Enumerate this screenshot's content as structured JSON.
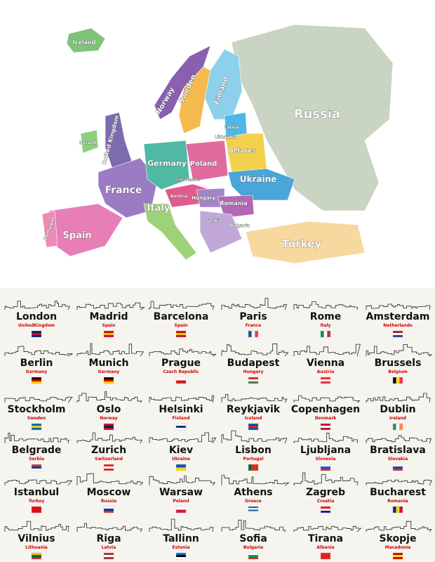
{
  "map": {
    "labels": [
      "Iceland",
      "Russia",
      "Norway",
      "Sweden",
      "Finland",
      "United Kingdom",
      "Ireland",
      "Latvia",
      "Lithuania",
      "Germany",
      "Poland",
      "Belarus",
      "Ukraine",
      "France",
      "Austria",
      "Hungary",
      "Romania",
      "Italy",
      "Spain",
      "Portugal",
      "Turkey",
      "Czech Republic",
      "Serbia",
      "Bulgaria"
    ]
  },
  "cities": [
    {
      "name": "London",
      "country": "UnitedKingdom"
    },
    {
      "name": "Madrid",
      "country": "Spain"
    },
    {
      "name": "Barcelona",
      "country": "Spain"
    },
    {
      "name": "Paris",
      "country": "France"
    },
    {
      "name": "Rome",
      "country": "Italy"
    },
    {
      "name": "Amsterdam",
      "country": "Netherlands"
    },
    {
      "name": "Berlin",
      "country": "Germany"
    },
    {
      "name": "Munich",
      "country": "Germany"
    },
    {
      "name": "Prague",
      "country": "Czech Republic"
    },
    {
      "name": "Budapest",
      "country": "Hungary"
    },
    {
      "name": "Vienna",
      "country": "Austria"
    },
    {
      "name": "Brussels",
      "country": "Belgium"
    },
    {
      "name": "Stockholm",
      "country": "Sweden"
    },
    {
      "name": "Oslo",
      "country": "Norway"
    },
    {
      "name": "Helsinki",
      "country": "Finland"
    },
    {
      "name": "Reykjavik",
      "country": "Iceland"
    },
    {
      "name": "Copenhagen",
      "country": "Denmark"
    },
    {
      "name": "Dublin",
      "country": "Ireland"
    },
    {
      "name": "Belgrade",
      "country": "Serbia"
    },
    {
      "name": "Zurich",
      "country": "Switzerland"
    },
    {
      "name": "Kiev",
      "country": "Ukraine"
    },
    {
      "name": "Lisbon",
      "country": "Portugal"
    },
    {
      "name": "Ljubljana",
      "country": "Slovenia"
    },
    {
      "name": "Bratislava",
      "country": "Slovakia"
    },
    {
      "name": "Istanbul",
      "country": "Turkey"
    },
    {
      "name": "Moscow",
      "country": "Russia"
    },
    {
      "name": "Warsaw",
      "country": "Poland"
    },
    {
      "name": "Athens",
      "country": "Greece"
    },
    {
      "name": "Zagreb",
      "country": "Croatia"
    },
    {
      "name": "Bucharest",
      "country": "Romania"
    },
    {
      "name": "Vilnius",
      "country": "Lithuania"
    },
    {
      "name": "Riga",
      "country": "Latvia"
    },
    {
      "name": "Tallinn",
      "country": "Estonia"
    },
    {
      "name": "Sofia",
      "country": "Bulgaria"
    },
    {
      "name": "Tirana",
      "country": "Albania"
    },
    {
      "name": "Skopje",
      "country": "Macedonia"
    }
  ]
}
